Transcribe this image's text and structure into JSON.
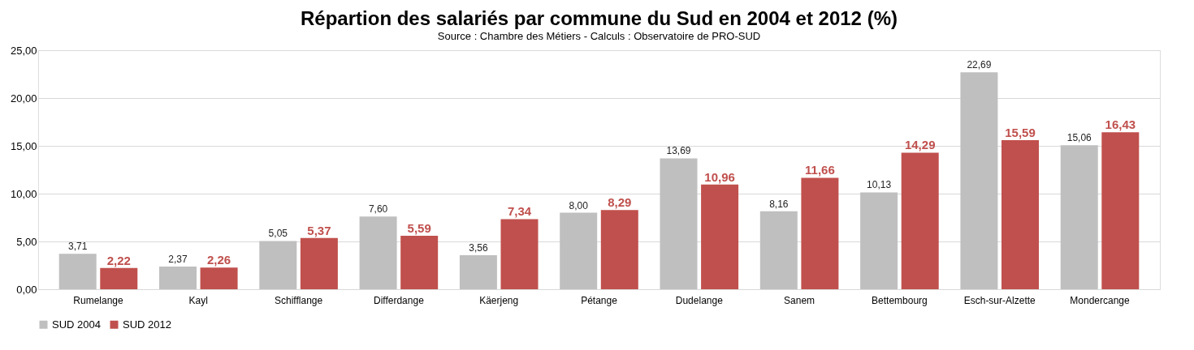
{
  "chart_data": {
    "type": "bar",
    "title": "Répartion des salariés par commune du Sud en 2004 et 2012 (%)",
    "subtitle": "Source : Chambre des Métiers  - Calculs : Observatoire de PRO-SUD",
    "categories": [
      "Rumelange",
      "Kayl",
      "Schifflange",
      "Differdange",
      "Käerjeng",
      "Pétange",
      "Dudelange",
      "Sanem",
      "Bettembourg",
      "Esch-sur-Alzette",
      "Mondercange"
    ],
    "series": [
      {
        "name": "SUD 2004",
        "color": "#bfbfbf",
        "values": [
          3.71,
          2.37,
          5.05,
          7.6,
          3.56,
          8.0,
          13.69,
          8.16,
          10.13,
          22.69,
          15.06
        ],
        "value_labels": [
          "3,71",
          "2,37",
          "5,05",
          "7,60",
          "3,56",
          "8,00",
          "13,69",
          "8,16",
          "10,13",
          "22,69",
          "15,06"
        ]
      },
      {
        "name": "SUD 2012",
        "color": "#c0504d",
        "values": [
          2.22,
          2.26,
          5.37,
          5.59,
          7.34,
          8.29,
          10.96,
          11.66,
          14.29,
          15.59,
          16.43
        ],
        "value_labels": [
          "2,22",
          "2,26",
          "5,37",
          "5,59",
          "7,34",
          "8,29",
          "10,96",
          "11,66",
          "14,29",
          "15,59",
          "16,43"
        ]
      }
    ],
    "ylim": [
      0,
      25
    ],
    "yticks": [
      {
        "value": 0,
        "label": "0,00"
      },
      {
        "value": 5,
        "label": "5,00"
      },
      {
        "value": 10,
        "label": "10,00"
      },
      {
        "value": 15,
        "label": "15,00"
      },
      {
        "value": 20,
        "label": "20,00"
      },
      {
        "value": 25,
        "label": "25,00"
      }
    ],
    "grid": "y",
    "legend": "bottom"
  }
}
